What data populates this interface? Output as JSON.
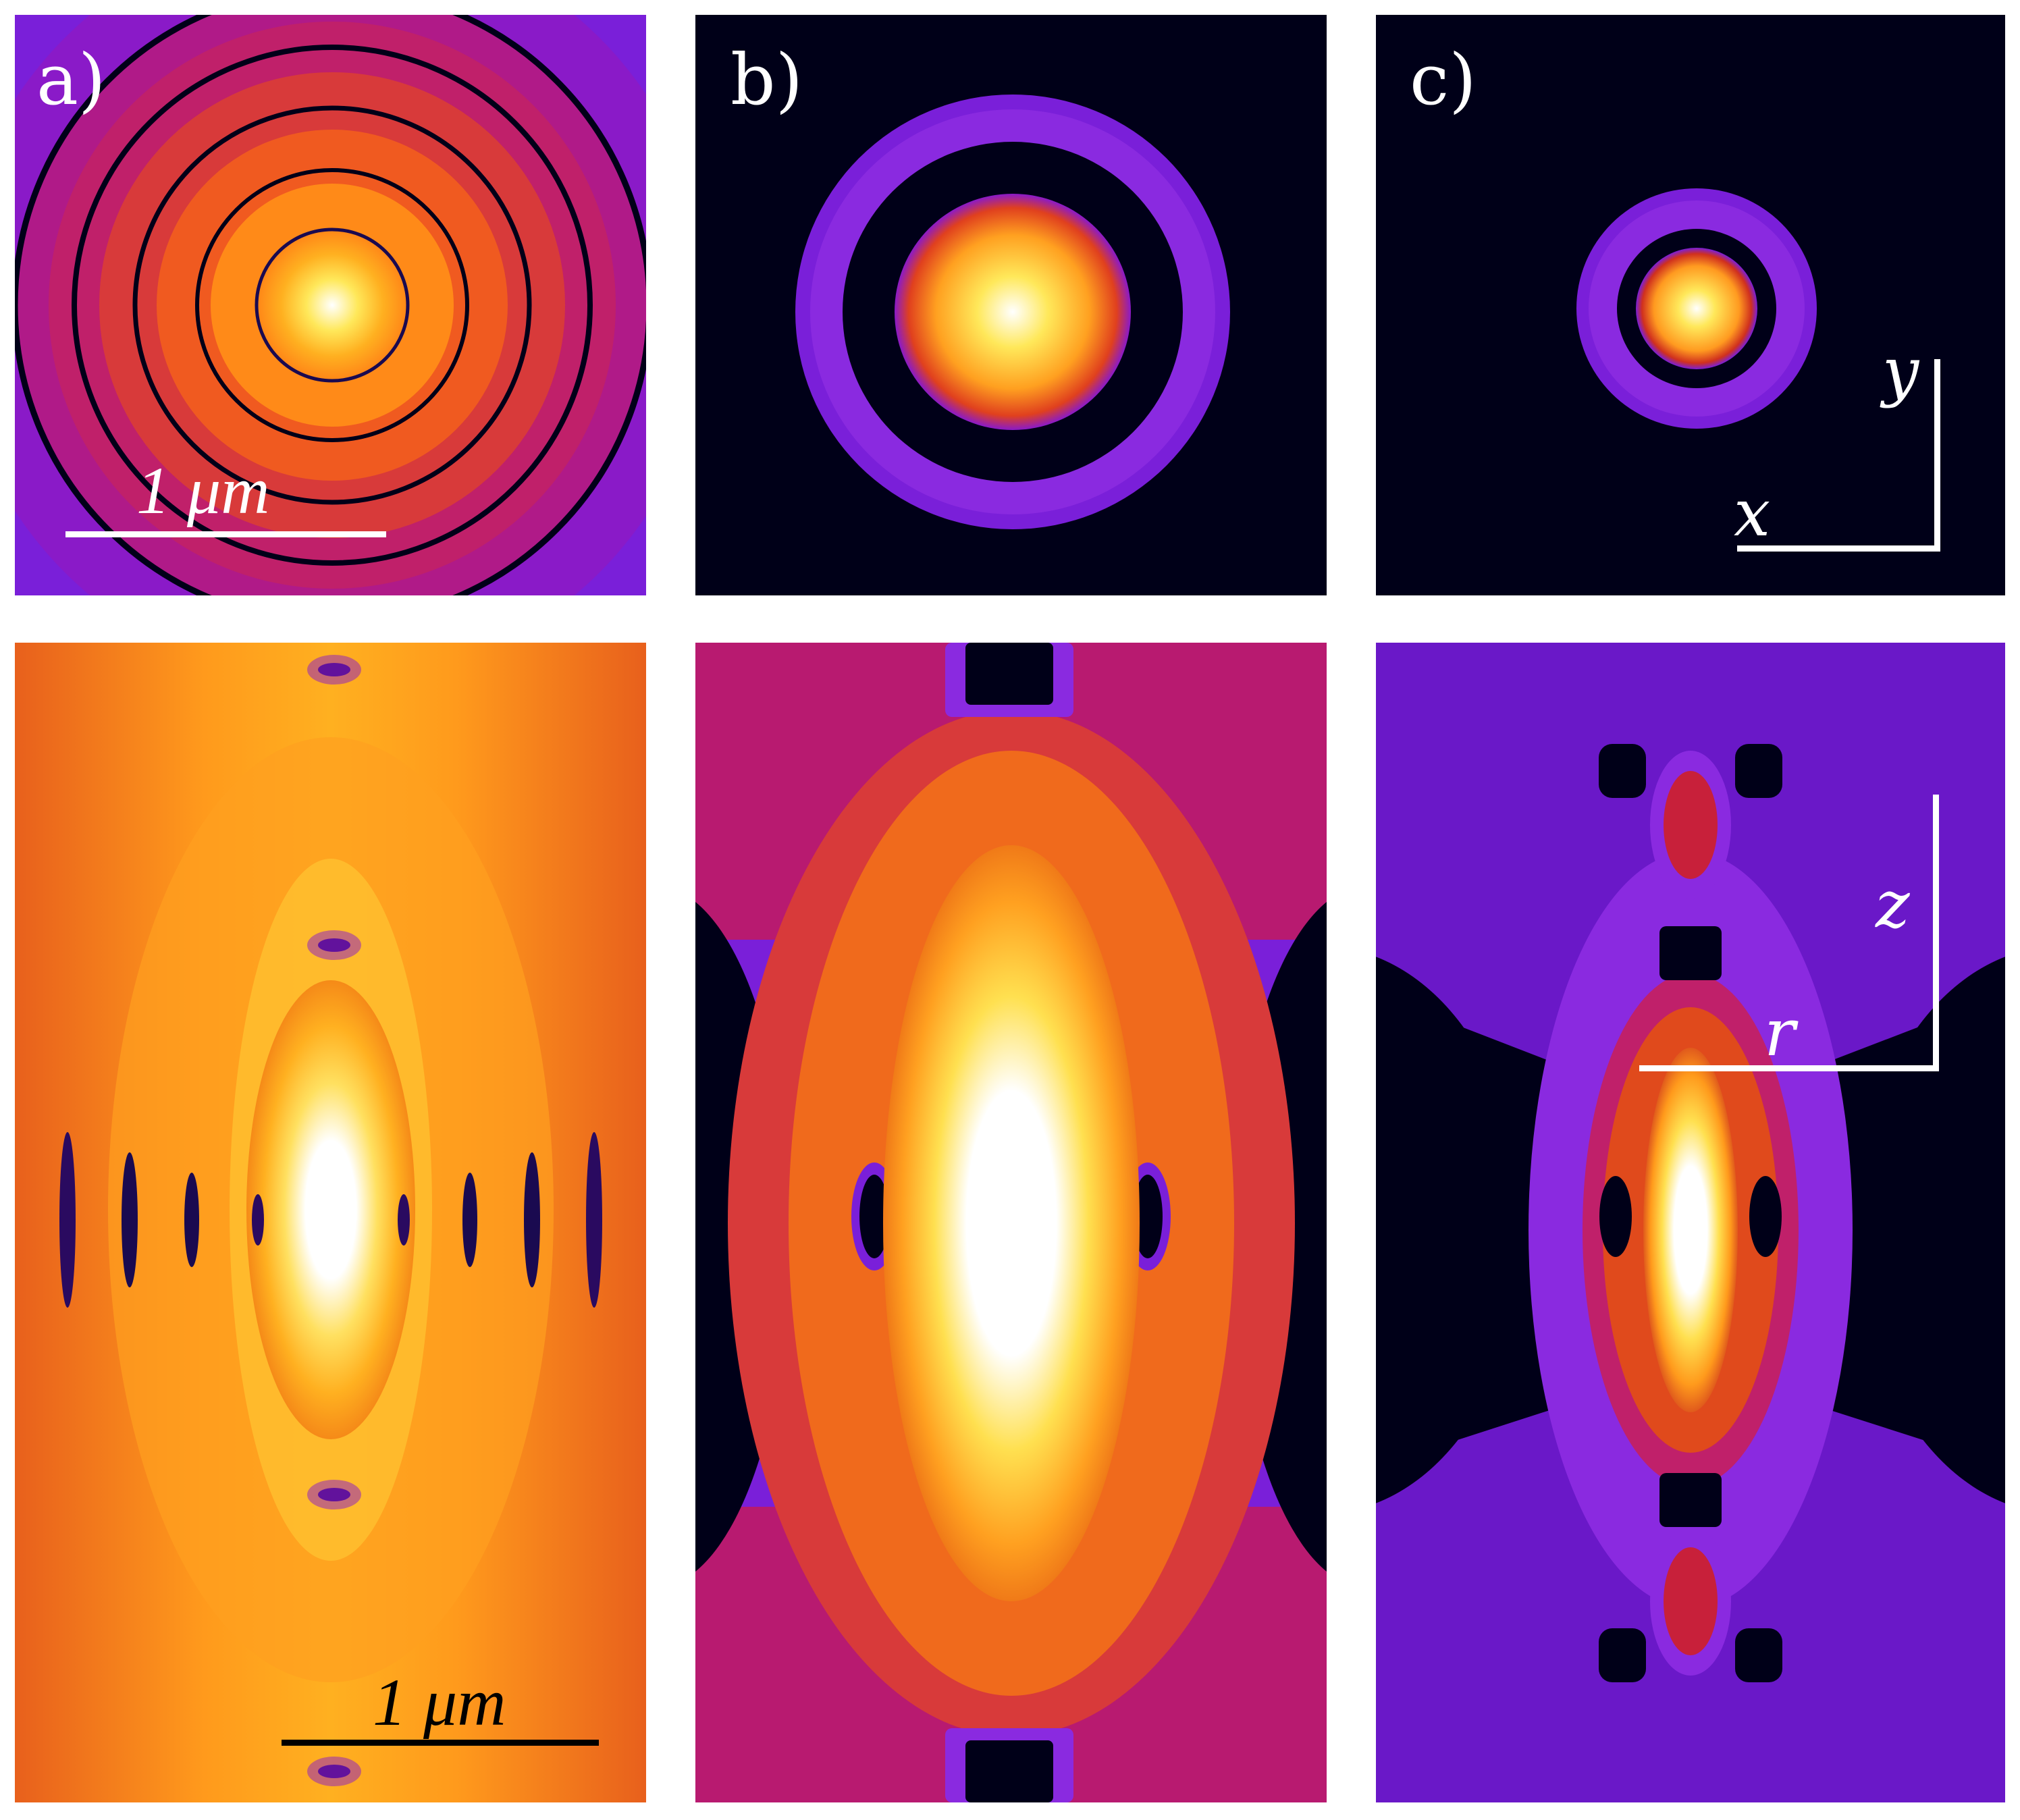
{
  "panels": {
    "a": {
      "label": "a)"
    },
    "b": {
      "label": "b)"
    },
    "c": {
      "label": "c)"
    }
  },
  "scale_bars": {
    "top": "1 μm",
    "bottom": "1 μm"
  },
  "axes": {
    "top": {
      "x": "x",
      "y": "y"
    },
    "bottom": {
      "r": "r",
      "z": "z"
    }
  },
  "colormap": [
    "#000018",
    "#7a1fd9",
    "#c21a5a",
    "#ff7a10",
    "#ffd21a",
    "#ffffff"
  ]
}
